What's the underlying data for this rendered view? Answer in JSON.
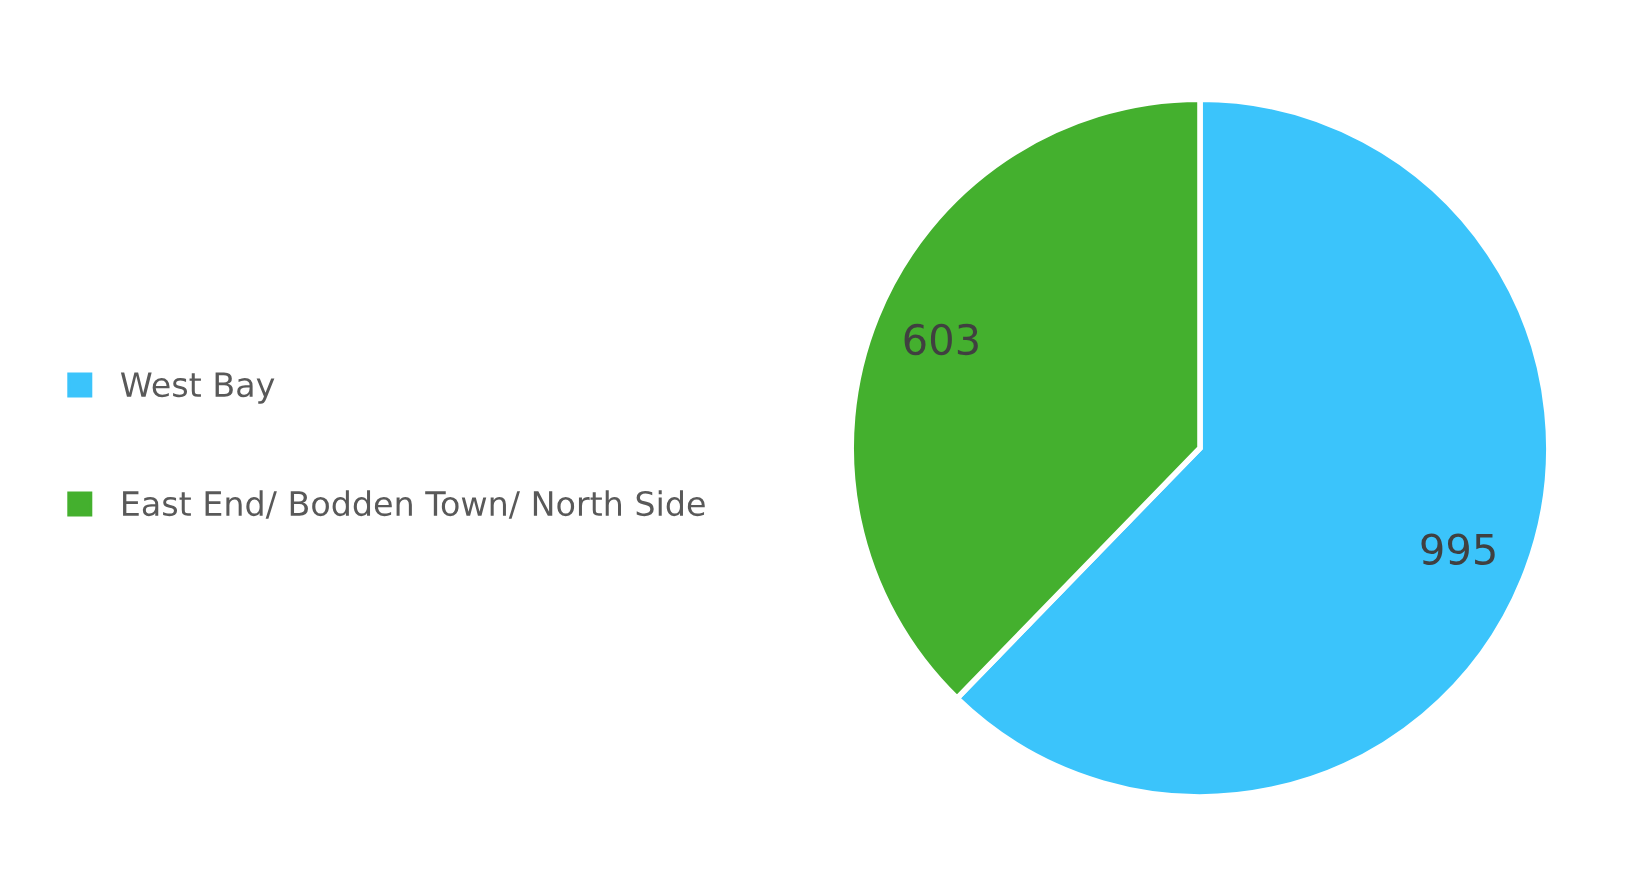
{
  "chart_data": {
    "type": "pie",
    "categories": [
      "West Bay",
      "East End/ Bodden Town/ North Side"
    ],
    "values": [
      995,
      603
    ],
    "colors": [
      "#3bc4fb",
      "#44b02e"
    ],
    "data_labels": true,
    "legend": "left"
  }
}
